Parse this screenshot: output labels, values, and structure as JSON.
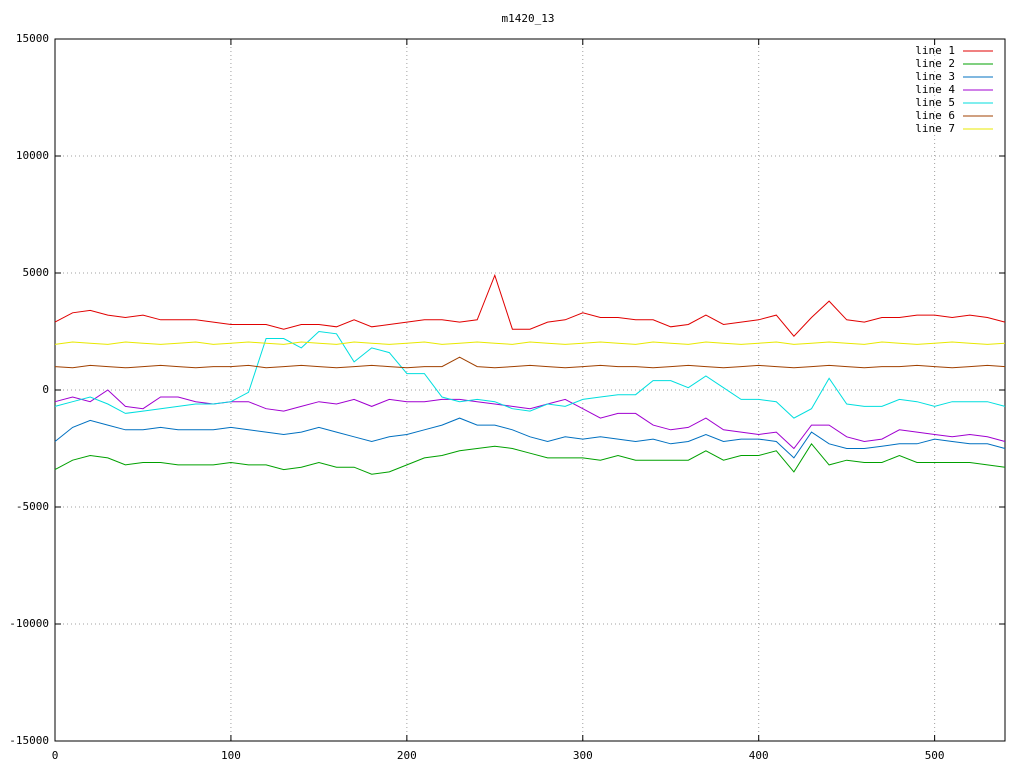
{
  "chart_data": {
    "type": "line",
    "title": "m1420_13",
    "x": [
      0,
      10,
      20,
      30,
      40,
      50,
      60,
      70,
      80,
      90,
      100,
      110,
      120,
      130,
      140,
      150,
      160,
      170,
      180,
      190,
      200,
      210,
      220,
      230,
      240,
      250,
      260,
      270,
      280,
      290,
      300,
      310,
      320,
      330,
      340,
      350,
      360,
      370,
      380,
      390,
      400,
      410,
      420,
      430,
      440,
      450,
      460,
      470,
      480,
      490,
      500,
      510,
      520,
      530,
      540
    ],
    "series": [
      {
        "name": "line 1",
        "color": "#e00000",
        "values": [
          2900,
          3300,
          3400,
          3200,
          3100,
          3200,
          3000,
          3000,
          3000,
          2900,
          2800,
          2800,
          2800,
          2600,
          2800,
          2800,
          2700,
          3000,
          2700,
          2800,
          2900,
          3000,
          3000,
          2900,
          3000,
          4900,
          2600,
          2600,
          2900,
          3000,
          3300,
          3100,
          3100,
          3000,
          3000,
          2700,
          2800,
          3200,
          2800,
          2900,
          3000,
          3200,
          2300,
          3100,
          3800,
          3000,
          2900,
          3100,
          3100,
          3200,
          3200,
          3100,
          3200,
          3100,
          2900
        ]
      },
      {
        "name": "line 2",
        "color": "#00a000",
        "values": [
          -3400,
          -3000,
          -2800,
          -2900,
          -3200,
          -3100,
          -3100,
          -3200,
          -3200,
          -3200,
          -3100,
          -3200,
          -3200,
          -3400,
          -3300,
          -3100,
          -3300,
          -3300,
          -3600,
          -3500,
          -3200,
          -2900,
          -2800,
          -2600,
          -2500,
          -2400,
          -2500,
          -2700,
          -2900,
          -2900,
          -2900,
          -3000,
          -2800,
          -3000,
          -3000,
          -3000,
          -3000,
          -2600,
          -3000,
          -2800,
          -2800,
          -2600,
          -3500,
          -2300,
          -3200,
          -3000,
          -3100,
          -3100,
          -2800,
          -3100,
          -3100,
          -3100,
          -3100,
          -3200,
          -3300
        ]
      },
      {
        "name": "line 3",
        "color": "#0070c0",
        "values": [
          -2200,
          -1600,
          -1300,
          -1500,
          -1700,
          -1700,
          -1600,
          -1700,
          -1700,
          -1700,
          -1600,
          -1700,
          -1800,
          -1900,
          -1800,
          -1600,
          -1800,
          -2000,
          -2200,
          -2000,
          -1900,
          -1700,
          -1500,
          -1200,
          -1500,
          -1500,
          -1700,
          -2000,
          -2200,
          -2000,
          -2100,
          -2000,
          -2100,
          -2200,
          -2100,
          -2300,
          -2200,
          -1900,
          -2200,
          -2100,
          -2100,
          -2200,
          -2900,
          -1800,
          -2300,
          -2500,
          -2500,
          -2400,
          -2300,
          -2300,
          -2100,
          -2200,
          -2300,
          -2300,
          -2500
        ]
      },
      {
        "name": "line 4",
        "color": "#a000d0",
        "values": [
          -500,
          -300,
          -500,
          0,
          -700,
          -800,
          -300,
          -300,
          -500,
          -600,
          -500,
          -500,
          -800,
          -900,
          -700,
          -500,
          -600,
          -400,
          -700,
          -400,
          -500,
          -500,
          -400,
          -400,
          -500,
          -600,
          -700,
          -800,
          -600,
          -400,
          -800,
          -1200,
          -1000,
          -1000,
          -1500,
          -1700,
          -1600,
          -1200,
          -1700,
          -1800,
          -1900,
          -1800,
          -2500,
          -1500,
          -1500,
          -2000,
          -2200,
          -2100,
          -1700,
          -1800,
          -1900,
          -2000,
          -1900,
          -2000,
          -2200
        ]
      },
      {
        "name": "line 5",
        "color": "#00dede",
        "values": [
          -700,
          -500,
          -300,
          -600,
          -1000,
          -900,
          -800,
          -700,
          -600,
          -600,
          -500,
          -100,
          2200,
          2200,
          1800,
          2500,
          2400,
          1200,
          1800,
          1600,
          700,
          700,
          -300,
          -500,
          -400,
          -500,
          -800,
          -900,
          -600,
          -700,
          -400,
          -300,
          -200,
          -200,
          400,
          400,
          100,
          600,
          100,
          -400,
          -400,
          -500,
          -1200,
          -800,
          500,
          -600,
          -700,
          -700,
          -400,
          -500,
          -700,
          -500,
          -500,
          -500,
          -700
        ]
      },
      {
        "name": "line 6",
        "color": "#a04000",
        "values": [
          1000,
          950,
          1050,
          1000,
          950,
          1000,
          1050,
          1000,
          950,
          1000,
          1000,
          1050,
          950,
          1000,
          1050,
          1000,
          950,
          1000,
          1050,
          1000,
          950,
          1000,
          1000,
          1400,
          1000,
          950,
          1000,
          1050,
          1000,
          950,
          1000,
          1050,
          1000,
          1000,
          950,
          1000,
          1050,
          1000,
          950,
          1000,
          1050,
          1000,
          950,
          1000,
          1050,
          1000,
          950,
          1000,
          1000,
          1050,
          1000,
          950,
          1000,
          1050,
          1000
        ]
      },
      {
        "name": "line 7",
        "color": "#e8e800",
        "values": [
          1950,
          2050,
          2000,
          1950,
          2050,
          2000,
          1950,
          2000,
          2050,
          1950,
          2000,
          2050,
          2000,
          1950,
          2050,
          2000,
          1950,
          2050,
          2000,
          1950,
          2000,
          2050,
          1950,
          2000,
          2050,
          2000,
          1950,
          2050,
          2000,
          1950,
          2000,
          2050,
          2000,
          1950,
          2050,
          2000,
          1950,
          2050,
          2000,
          1950,
          2000,
          2050,
          1950,
          2000,
          2050,
          2000,
          1950,
          2050,
          2000,
          1950,
          2000,
          2050,
          2000,
          1950,
          2000
        ]
      }
    ],
    "xlim": [
      0,
      540
    ],
    "xticks": [
      0,
      100,
      200,
      300,
      400,
      500
    ],
    "ylim": [
      -15000,
      15000
    ],
    "yticks": [
      -15000,
      -10000,
      -5000,
      0,
      5000,
      10000,
      15000
    ],
    "grid": true,
    "legend": "top-right"
  }
}
